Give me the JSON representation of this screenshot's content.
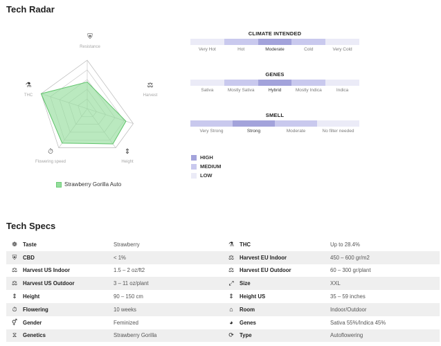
{
  "radar": {
    "title": "Tech Radar",
    "axes": [
      "Resistance",
      "Harvest",
      "Height",
      "Flowering speed",
      "THC"
    ],
    "strain_name": "Strawberry Gorilla Auto",
    "fill_color": "#95dd9c",
    "stroke_color": "#5fc46b",
    "values": [
      0.55,
      0.84,
      0.9,
      0.88,
      1.0
    ]
  },
  "scales": [
    {
      "title": "CLIMATE INTENDED",
      "options": [
        "Very Hot",
        "Hot",
        "Moderate",
        "Cold",
        "Very Cold"
      ],
      "levels": [
        "low",
        "medium",
        "high",
        "medium",
        "low"
      ]
    },
    {
      "title": "GENES",
      "options": [
        "Sativa",
        "Mostly Sativa",
        "Hybrid",
        "Mostly Indica",
        "Indica"
      ],
      "levels": [
        "low",
        "medium",
        "high",
        "medium",
        "low"
      ]
    },
    {
      "title": "SMELL",
      "options": [
        "Very Strong",
        "Strong",
        "Moderate",
        "No filter needed"
      ],
      "levels": [
        "medium",
        "high",
        "medium",
        "low"
      ]
    }
  ],
  "level_legend": [
    {
      "label": "HIGH",
      "color": "#a3a3db"
    },
    {
      "label": "MEDIUM",
      "color": "#c9c9ee"
    },
    {
      "label": "LOW",
      "color": "#ebebf7"
    }
  ],
  "specs": {
    "title": "Tech Specs",
    "rows": [
      {
        "left": {
          "icon": "taste-icon",
          "glyph": "❁",
          "label": "Taste",
          "value": "Strawberry"
        },
        "right": {
          "icon": "thc-flask-icon",
          "glyph": "⚗",
          "label": "THC",
          "value": "Up to 28.4%"
        }
      },
      {
        "left": {
          "icon": "cbd-shield-icon",
          "glyph": "⛨",
          "label": "CBD",
          "value": "< 1%"
        },
        "right": {
          "icon": "harvest-scale-icon",
          "glyph": "⚖",
          "label": "Harvest EU Indoor",
          "value": "450 – 600 gr/m2"
        }
      },
      {
        "left": {
          "icon": "harvest-scale-icon",
          "glyph": "⚖",
          "label": "Harvest US Indoor",
          "value": "1.5 – 2 oz/ft2"
        },
        "right": {
          "icon": "harvest-scale-icon",
          "glyph": "⚖",
          "label": "Harvest EU Outdoor",
          "value": "60 – 300 gr/plant"
        }
      },
      {
        "left": {
          "icon": "harvest-scale-icon",
          "glyph": "⚖",
          "label": "Harvest US Outdoor",
          "value": "3 – 11 oz/plant"
        },
        "right": {
          "icon": "size-arrows-icon",
          "glyph": "⤢",
          "label": "Size",
          "value": "XXL"
        }
      },
      {
        "left": {
          "icon": "height-icon",
          "glyph": "⇕",
          "label": "Height",
          "value": "90 – 150 cm"
        },
        "right": {
          "icon": "height-icon",
          "glyph": "⇕",
          "label": "Height US",
          "value": "35 – 59 inches"
        }
      },
      {
        "left": {
          "icon": "flowering-timer-icon",
          "glyph": "⏱",
          "label": "Flowering",
          "value": "10 weeks"
        },
        "right": {
          "icon": "room-house-icon",
          "glyph": "⌂",
          "label": "Room",
          "value": "Indoor/Outdoor"
        }
      },
      {
        "left": {
          "icon": "gender-icon",
          "glyph": "⚥",
          "label": "Gender",
          "value": "Feminized"
        },
        "right": {
          "icon": "genes-pie-icon",
          "glyph": "◕",
          "label": "Genes",
          "value": "Sativa 55%/Indica 45%"
        }
      },
      {
        "left": {
          "icon": "genetics-dna-icon",
          "glyph": "⧖",
          "label": "Genetics",
          "value": "Strawberry Gorilla"
        },
        "right": {
          "icon": "type-cycle-icon",
          "glyph": "⟳",
          "label": "Type",
          "value": "Autoflowering"
        }
      }
    ]
  }
}
